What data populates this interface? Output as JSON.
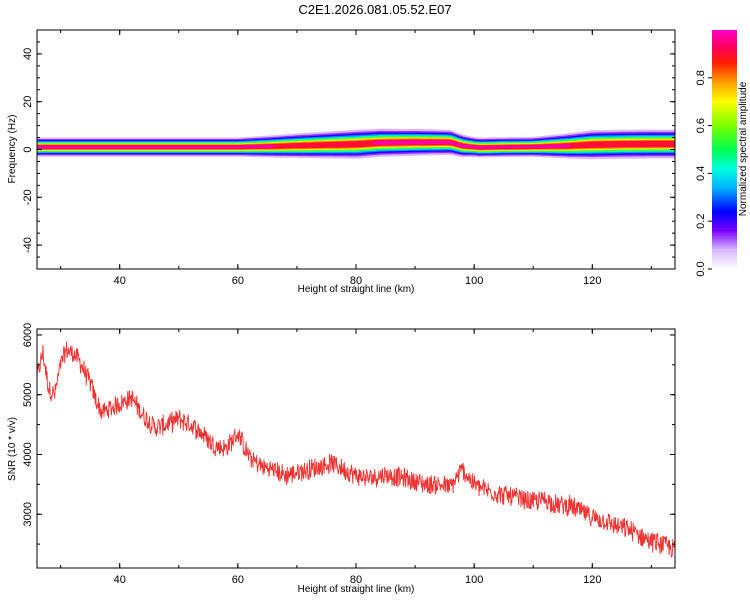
{
  "title": "C2E1.2026.081.05.52.E07",
  "colorbar": {
    "label": "Normalized spectral amplitude",
    "ticks": [
      "0.0",
      "0.2",
      "0.4",
      "0.6",
      "0.8"
    ],
    "tick_values": [
      0.0,
      0.2,
      0.4,
      0.6,
      0.8
    ],
    "range": [
      0,
      1
    ]
  },
  "chart_data": [
    {
      "type": "heatmap",
      "xlabel": "Height of straight line (km)",
      "ylabel": "Frequency (Hz)",
      "xlim": [
        26,
        134
      ],
      "ylim": [
        -50,
        50
      ],
      "x_ticks": [
        "40",
        "60",
        "80",
        "100",
        "120"
      ],
      "x_tick_values": [
        40,
        60,
        80,
        100,
        120
      ],
      "y_ticks": [
        "40",
        "20",
        "0",
        "-20",
        "-40"
      ],
      "y_tick_values": [
        40,
        20,
        0,
        -20,
        -40
      ],
      "center_frequency": {
        "x": [
          27,
          40,
          60,
          66,
          70,
          75,
          80,
          84,
          90,
          96,
          98,
          101,
          105,
          110,
          116,
          120,
          125,
          130,
          134
        ],
        "y": [
          1,
          1,
          1,
          1.3,
          1.6,
          1.9,
          2.2,
          2.8,
          3,
          3,
          1.5,
          0.8,
          1,
          1.1,
          1.5,
          2,
          2.2,
          2.3,
          2.3
        ]
      },
      "band_halfwidth": {
        "x": [
          27,
          60,
          70,
          80,
          90,
          96,
          100,
          110,
          120,
          134
        ],
        "y": [
          2.5,
          2.5,
          3.2,
          3.8,
          3.5,
          3.3,
          2.6,
          2.6,
          3.8,
          3.8
        ]
      }
    },
    {
      "type": "line",
      "xlabel": "Height of straight line (km)",
      "ylabel": "SNR (10 * v/v)",
      "xlim": [
        26,
        134
      ],
      "ylim": [
        2100,
        6100
      ],
      "x_ticks": [
        "40",
        "60",
        "80",
        "100",
        "120"
      ],
      "x_tick_values": [
        40,
        60,
        80,
        100,
        120
      ],
      "y_ticks": [
        "6000",
        "5000",
        "4000",
        "3000"
      ],
      "y_tick_values": [
        6000,
        5000,
        4000,
        3000
      ],
      "color": "#ee3333",
      "series": [
        {
          "x": [
            26,
            27,
            28,
            29,
            30,
            31,
            32,
            33,
            34,
            35,
            36,
            37,
            38,
            40,
            42,
            44,
            46,
            48,
            50,
            52,
            54,
            56,
            58,
            60,
            62,
            64,
            66,
            68,
            70,
            72,
            74,
            76,
            78,
            80,
            82,
            84,
            86,
            88,
            90,
            92,
            94,
            96,
            98,
            100,
            102,
            104,
            106,
            108,
            110,
            112,
            114,
            116,
            118,
            120,
            122,
            124,
            126,
            128,
            130,
            132,
            134
          ],
          "values": [
            5300,
            5700,
            5100,
            5000,
            5500,
            5750,
            5700,
            5600,
            5400,
            5200,
            4900,
            4700,
            4750,
            4850,
            4950,
            4650,
            4450,
            4500,
            4600,
            4500,
            4350,
            4150,
            4100,
            4350,
            3950,
            3800,
            3750,
            3650,
            3700,
            3750,
            3800,
            3850,
            3750,
            3650,
            3600,
            3650,
            3650,
            3600,
            3550,
            3500,
            3500,
            3450,
            3750,
            3500,
            3400,
            3350,
            3300,
            3250,
            3200,
            3250,
            3150,
            3150,
            3050,
            2950,
            2900,
            2800,
            2750,
            2650,
            2550,
            2500,
            2400
          ]
        }
      ]
    }
  ]
}
